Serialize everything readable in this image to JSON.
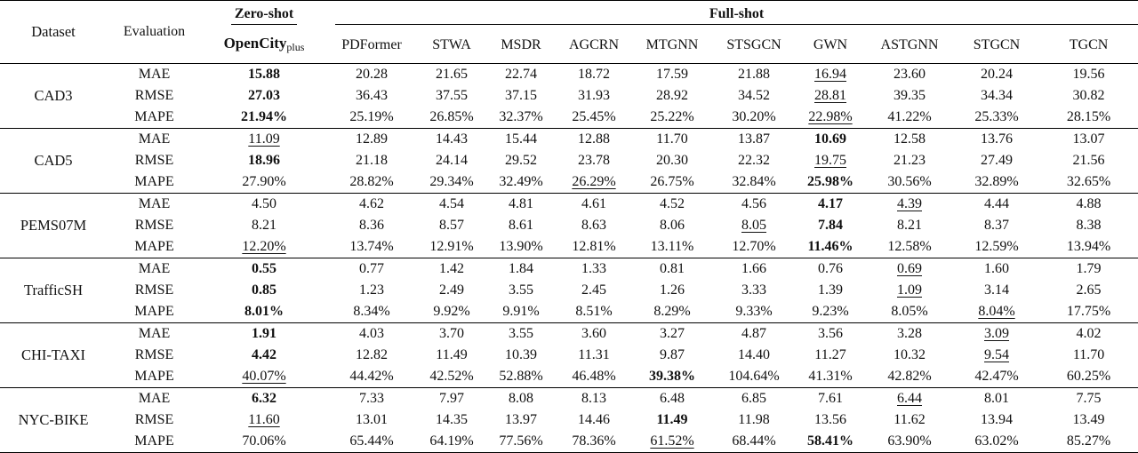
{
  "header": {
    "dataset": "Dataset",
    "evaluation": "Evaluation",
    "zero_shot": "Zero-shot",
    "full_shot": "Full-shot",
    "opencity": "OpenCity",
    "opencity_sub": "plus",
    "models": [
      "PDFormer",
      "STWA",
      "MSDR",
      "AGCRN",
      "MTGNN",
      "STSGCN",
      "GWN",
      "ASTGNN",
      "STGCN",
      "TGCN"
    ]
  },
  "datasets": [
    {
      "name": "CAD3",
      "rows": [
        {
          "metric": "MAE",
          "values": [
            "15.88",
            "20.28",
            "21.65",
            "22.74",
            "18.72",
            "17.59",
            "21.88",
            "16.94",
            "23.60",
            "20.24",
            "19.56"
          ],
          "bold": [
            0
          ],
          "underline": [
            7
          ]
        },
        {
          "metric": "RMSE",
          "values": [
            "27.03",
            "36.43",
            "37.55",
            "37.15",
            "31.93",
            "28.92",
            "34.52",
            "28.81",
            "39.35",
            "34.34",
            "30.82"
          ],
          "bold": [
            0
          ],
          "underline": [
            7
          ]
        },
        {
          "metric": "MAPE",
          "values": [
            "21.94%",
            "25.19%",
            "26.85%",
            "32.37%",
            "25.45%",
            "25.22%",
            "30.20%",
            "22.98%",
            "41.22%",
            "25.33%",
            "28.15%"
          ],
          "bold": [
            0
          ],
          "underline": [
            7
          ]
        }
      ]
    },
    {
      "name": "CAD5",
      "rows": [
        {
          "metric": "MAE",
          "values": [
            "11.09",
            "12.89",
            "14.43",
            "15.44",
            "12.88",
            "11.70",
            "13.87",
            "10.69",
            "12.58",
            "13.76",
            "13.07"
          ],
          "bold": [
            7
          ],
          "underline": [
            0
          ]
        },
        {
          "metric": "RMSE",
          "values": [
            "18.96",
            "21.18",
            "24.14",
            "29.52",
            "23.78",
            "20.30",
            "22.32",
            "19.75",
            "21.23",
            "27.49",
            "21.56"
          ],
          "bold": [
            0
          ],
          "underline": [
            7
          ]
        },
        {
          "metric": "MAPE",
          "values": [
            "27.90%",
            "28.82%",
            "29.34%",
            "32.49%",
            "26.29%",
            "26.75%",
            "32.84%",
            "25.98%",
            "30.56%",
            "32.89%",
            "32.65%"
          ],
          "bold": [
            7
          ],
          "underline": [
            4
          ]
        }
      ]
    },
    {
      "name": "PEMS07M",
      "rows": [
        {
          "metric": "MAE",
          "values": [
            "4.50",
            "4.62",
            "4.54",
            "4.81",
            "4.61",
            "4.52",
            "4.56",
            "4.17",
            "4.39",
            "4.44",
            "4.88"
          ],
          "bold": [
            7
          ],
          "underline": [
            8
          ]
        },
        {
          "metric": "RMSE",
          "values": [
            "8.21",
            "8.36",
            "8.57",
            "8.61",
            "8.63",
            "8.06",
            "8.05",
            "7.84",
            "8.21",
            "8.37",
            "8.38"
          ],
          "bold": [
            7
          ],
          "underline": [
            6
          ]
        },
        {
          "metric": "MAPE",
          "values": [
            "12.20%",
            "13.74%",
            "12.91%",
            "13.90%",
            "12.81%",
            "13.11%",
            "12.70%",
            "11.46%",
            "12.58%",
            "12.59%",
            "13.94%"
          ],
          "bold": [
            7
          ],
          "underline": [
            0
          ]
        }
      ]
    },
    {
      "name": "TrafficSH",
      "rows": [
        {
          "metric": "MAE",
          "values": [
            "0.55",
            "0.77",
            "1.42",
            "1.84",
            "1.33",
            "0.81",
            "1.66",
            "0.76",
            "0.69",
            "1.60",
            "1.79"
          ],
          "bold": [
            0
          ],
          "underline": [
            8
          ]
        },
        {
          "metric": "RMSE",
          "values": [
            "0.85",
            "1.23",
            "2.49",
            "3.55",
            "2.45",
            "1.26",
            "3.33",
            "1.39",
            "1.09",
            "3.14",
            "2.65"
          ],
          "bold": [
            0
          ],
          "underline": [
            8
          ]
        },
        {
          "metric": "MAPE",
          "values": [
            "8.01%",
            "8.34%",
            "9.92%",
            "9.91%",
            "8.51%",
            "8.29%",
            "9.33%",
            "9.23%",
            "8.05%",
            "8.04%",
            "17.75%"
          ],
          "bold": [
            0
          ],
          "underline": [
            9
          ]
        }
      ]
    },
    {
      "name": "CHI-TAXI",
      "rows": [
        {
          "metric": "MAE",
          "values": [
            "1.91",
            "4.03",
            "3.70",
            "3.55",
            "3.60",
            "3.27",
            "4.87",
            "3.56",
            "3.28",
            "3.09",
            "4.02"
          ],
          "bold": [
            0
          ],
          "underline": [
            9
          ]
        },
        {
          "metric": "RMSE",
          "values": [
            "4.42",
            "12.82",
            "11.49",
            "10.39",
            "11.31",
            "9.87",
            "14.40",
            "11.27",
            "10.32",
            "9.54",
            "11.70"
          ],
          "bold": [
            0
          ],
          "underline": [
            9
          ]
        },
        {
          "metric": "MAPE",
          "values": [
            "40.07%",
            "44.42%",
            "42.52%",
            "52.88%",
            "46.48%",
            "39.38%",
            "104.64%",
            "41.31%",
            "42.82%",
            "42.47%",
            "60.25%"
          ],
          "bold": [
            5
          ],
          "underline": [
            0
          ]
        }
      ]
    },
    {
      "name": "NYC-BIKE",
      "rows": [
        {
          "metric": "MAE",
          "values": [
            "6.32",
            "7.33",
            "7.97",
            "8.08",
            "8.13",
            "6.48",
            "6.85",
            "7.61",
            "6.44",
            "8.01",
            "7.75"
          ],
          "bold": [
            0
          ],
          "underline": [
            8
          ]
        },
        {
          "metric": "RMSE",
          "values": [
            "11.60",
            "13.01",
            "14.35",
            "13.97",
            "14.46",
            "11.49",
            "11.98",
            "13.56",
            "11.62",
            "13.94",
            "13.49"
          ],
          "bold": [
            5
          ],
          "underline": [
            0
          ]
        },
        {
          "metric": "MAPE",
          "values": [
            "70.06%",
            "65.44%",
            "64.19%",
            "77.56%",
            "78.36%",
            "61.52%",
            "68.44%",
            "58.41%",
            "63.90%",
            "63.02%",
            "85.27%"
          ],
          "bold": [
            7
          ],
          "underline": [
            5
          ]
        }
      ]
    }
  ]
}
